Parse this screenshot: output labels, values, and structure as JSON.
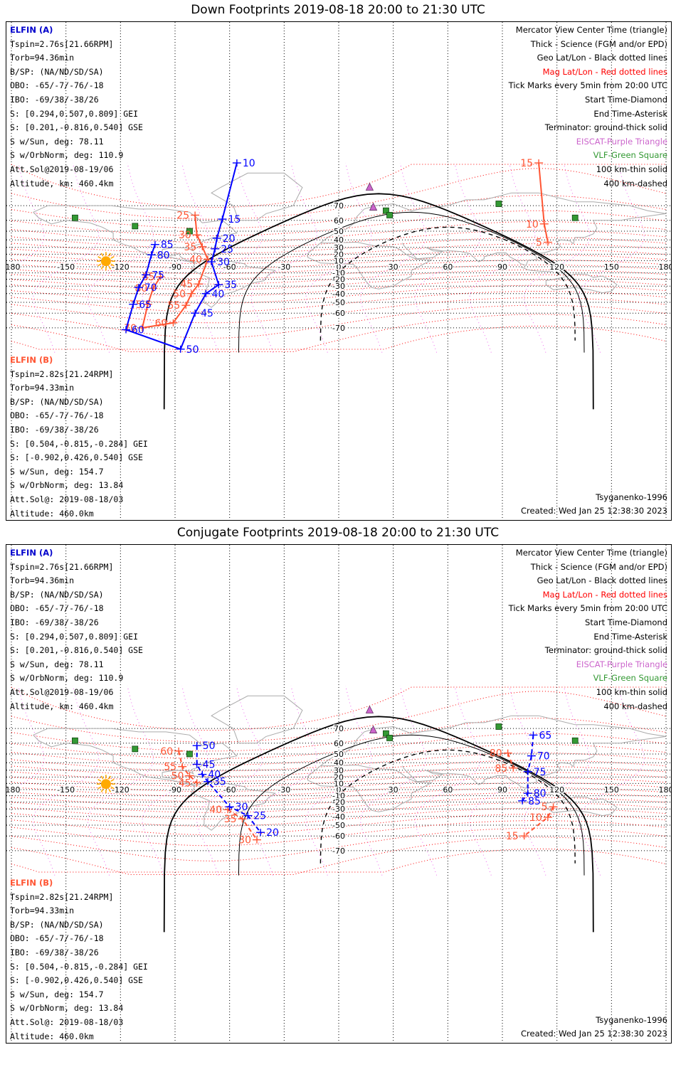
{
  "panels": [
    {
      "title": "Down Footprints 2019-08-18 20:00 to 21:30 UTC",
      "mode": "down",
      "elfin_a": {
        "header": "ELFIN (A)",
        "lines": [
          "Tspin=2.76s[21.66RPM]",
          "Torb=94.36min",
          "B/SP: (NA/ND/SD/SA)",
          "OBO: -65/-7/-76/-18",
          "IBO: -69/38/-38/26",
          "S: [0.294,0.507,0.809] GEI",
          "S: [0.201,-0.816,0.540] GSE",
          "S w/Sun, deg: 78.11",
          "S w/OrbNorm, deg: 110.9",
          "Att.Sol@2019-08-19/06",
          "Altitude, km: 460.4km"
        ]
      },
      "elfin_b": {
        "header": "ELFIN (B)",
        "lines": [
          "Tspin=2.82s[21.24RPM]",
          "Torb=94.33min",
          "B/SP: (NA/ND/SD/SA)",
          "OBO: -65/-7/-76/-18",
          "IBO: -69/38/-38/26",
          "S: [0.504,-0.815,-0.284] GEI",
          "S: [-0.902,0.426,0.540] GSE",
          "S w/Sun, deg: 154.7",
          "S w/OrbNorm, deg: 13.84",
          "Att.Sol@: 2019-08-18/03",
          "Altitude: 460.0km"
        ]
      },
      "model": "Tsyganenko-1996",
      "created": "Created: Wed Jan 25 12:38:30 2023",
      "orbit_a": [
        {
          "t": "10",
          "lon": -56,
          "lat": 84
        },
        {
          "t": "15",
          "lon": -64,
          "lat": 61
        },
        {
          "t": "20",
          "lon": -67,
          "lat": 42
        },
        {
          "t": "25",
          "lon": -68,
          "lat": 28
        },
        {
          "t": "30",
          "lon": -70,
          "lat": 8
        },
        {
          "t": "35",
          "lon": -66,
          "lat": -28
        },
        {
          "t": "40",
          "lon": -73,
          "lat": -40
        },
        {
          "t": "45",
          "lon": -79,
          "lat": -60
        },
        {
          "t": "50",
          "lon": -87,
          "lat": -79
        },
        {
          "t": "60",
          "lon": -117,
          "lat": -71
        },
        {
          "t": "65",
          "lon": -113,
          "lat": -52
        },
        {
          "t": "70",
          "lon": -110,
          "lat": -32
        },
        {
          "t": "75",
          "lon": -106,
          "lat": -13
        },
        {
          "t": "80",
          "lon": -103,
          "lat": 19
        },
        {
          "t": "85",
          "lon": -101,
          "lat": 34
        }
      ],
      "orbit_b": [
        {
          "t": "15",
          "lon": 110,
          "lat": 84
        },
        {
          "t": "10",
          "lon": 113,
          "lat": 57
        },
        {
          "t": "5",
          "lon": 115,
          "lat": 37
        },
        {
          "t": "25",
          "lon": -79,
          "lat": 64
        },
        {
          "t": "30",
          "lon": -78,
          "lat": 46
        },
        {
          "t": "35",
          "lon": -75,
          "lat": 31
        },
        {
          "t": "40",
          "lon": -72,
          "lat": 12
        },
        {
          "t": "45",
          "lon": -77,
          "lat": -27
        },
        {
          "t": "50",
          "lon": -81,
          "lat": -40
        },
        {
          "t": "55",
          "lon": -84,
          "lat": -53
        },
        {
          "t": "60",
          "lon": -91,
          "lat": -67
        },
        {
          "t": "70",
          "lon": -108,
          "lat": -70
        },
        {
          "t": "75",
          "lon": -105,
          "lat": -52
        },
        {
          "t": "80",
          "lon": -102,
          "lat": -33
        },
        {
          "t": "85",
          "lon": -98,
          "lat": -16
        }
      ]
    },
    {
      "title": "Conjugate Footprints 2019-08-18 20:00 to 21:30 UTC",
      "mode": "conj",
      "elfin_a": {
        "header": "ELFIN (A)",
        "lines": [
          "Tspin=2.76s[21.66RPM]",
          "Torb=94.36min",
          "B/SP: (NA/ND/SD/SA)",
          "OBO: -65/-7/-76/-18",
          "IBO: -69/38/-38/26",
          "S: [0.294,0.507,0.809] GEI",
          "S: [0.201,-0.816,0.540] GSE",
          "S w/Sun, deg: 78.11",
          "S w/OrbNorm, deg: 110.9",
          "Att.Sol@2019-08-19/06",
          "Altitude, km: 460.4km"
        ]
      },
      "elfin_b": {
        "header": "ELFIN (B)",
        "lines": [
          "Tspin=2.82s[21.24RPM]",
          "Torb=94.33min",
          "B/SP: (NA/ND/SD/SA)",
          "OBO: -65/-7/-76/-18",
          "IBO: -69/38/-38/26",
          "S: [0.504,-0.815,-0.284] GEI",
          "S: [-0.902,0.426,0.540] GSE",
          "S w/Sun, deg: 154.7",
          "S w/OrbNorm, deg: 13.84",
          "Att.Sol@: 2019-08-18/03",
          "Altitude: 460.0km"
        ]
      },
      "model": "Tsyganenko-1996",
      "created": "Created: Wed Jan 25 12:38:30 2023",
      "orbit_a": [
        {
          "t": "50",
          "lon": -78,
          "lat": 58
        },
        {
          "t": "45",
          "lon": -78,
          "lat": 38
        },
        {
          "t": "40",
          "lon": -75,
          "lat": 24
        },
        {
          "t": "35",
          "lon": -72,
          "lat": 13
        },
        {
          "t": "30",
          "lon": -60,
          "lat": -27
        },
        {
          "t": "25",
          "lon": -50,
          "lat": -39
        },
        {
          "t": "20",
          "lon": -43,
          "lat": -57
        },
        {
          "t": "65",
          "lon": 107,
          "lat": 66
        },
        {
          "t": "70",
          "lon": 106,
          "lat": 48
        },
        {
          "t": "75",
          "lon": 104,
          "lat": 28
        },
        {
          "t": "80",
          "lon": 104,
          "lat": -6
        },
        {
          "t": "85",
          "lon": 101,
          "lat": -18
        }
      ],
      "orbit_b": [
        {
          "t": "60",
          "lon": -88,
          "lat": 53
        },
        {
          "t": "55",
          "lon": -86,
          "lat": 35
        },
        {
          "t": "50",
          "lon": -82,
          "lat": 22
        },
        {
          "t": "45",
          "lon": -78,
          "lat": 11
        },
        {
          "t": "40",
          "lon": -61,
          "lat": -31
        },
        {
          "t": "35",
          "lon": -53,
          "lat": -43
        },
        {
          "t": "30",
          "lon": -45,
          "lat": -63
        },
        {
          "t": "80",
          "lon": 93,
          "lat": 51
        },
        {
          "t": "85",
          "lon": 96,
          "lat": 33
        },
        {
          "t": "5",
          "lon": 118,
          "lat": -27
        },
        {
          "t": "10",
          "lon": 115,
          "lat": -41
        },
        {
          "t": "15",
          "lon": 102,
          "lat": -60
        }
      ]
    }
  ],
  "legend_lines": [
    {
      "text": "Mercator View Center Time (triangle)",
      "color": "#000000"
    },
    {
      "text": "Thick - Science (FGM and/or EPD)",
      "color": "#000000"
    },
    {
      "text": "Geo Lat/Lon - Black dotted lines",
      "color": "#000000"
    },
    {
      "text": "Mag Lat/Lon - Red dotted lines",
      "color": "#ff0000"
    },
    {
      "text": "Tick Marks every 5min from 20:00 UTC",
      "color": "#000000"
    },
    {
      "text": "Start Time-Diamond",
      "color": "#000000"
    },
    {
      "text": "End Time-Asterisk",
      "color": "#000000"
    },
    {
      "text": "Terminator: ground-thick solid",
      "color": "#000000"
    },
    {
      "text": "EISCAT-Purple Triangle",
      "color": "#cc66cc"
    },
    {
      "text": "VLF-Green Square",
      "color": "#339933"
    },
    {
      "text": "100 km-thin solid",
      "color": "#000000"
    },
    {
      "text": "400 km-dashed",
      "color": "#000000"
    }
  ],
  "lon_ticks": [
    "-180",
    "-150",
    "-120",
    "-90",
    "-60",
    "-30",
    "0",
    "30",
    "60",
    "90",
    "120",
    "150",
    "180"
  ],
  "lat_ticks": [
    "70",
    "60",
    "50",
    "40",
    "30",
    "20",
    "10",
    "-10",
    "-20",
    "-30",
    "-40",
    "-50",
    "-60",
    "-70"
  ],
  "colors": {
    "elfin_a": "#0000ff",
    "elfin_b": "#ff5533",
    "mag_grid": "#ff0000",
    "eiscat": "#cc66cc",
    "vlf": "#339933",
    "sun": "#ffaa00"
  },
  "eiscat_sites": [
    {
      "lon": 17,
      "lat": 78
    },
    {
      "lon": 19,
      "lat": 69
    }
  ],
  "vlf_sites": [
    {
      "lon": -145,
      "lat": 62
    },
    {
      "lon": -112,
      "lat": 55
    },
    {
      "lon": -82,
      "lat": 50
    },
    {
      "lon": 26,
      "lat": 67
    },
    {
      "lon": 28,
      "lat": 64
    },
    {
      "lon": 88,
      "lat": 71
    },
    {
      "lon": 130,
      "lat": 62
    }
  ],
  "sun": {
    "lon": -128,
    "lat": 9
  }
}
